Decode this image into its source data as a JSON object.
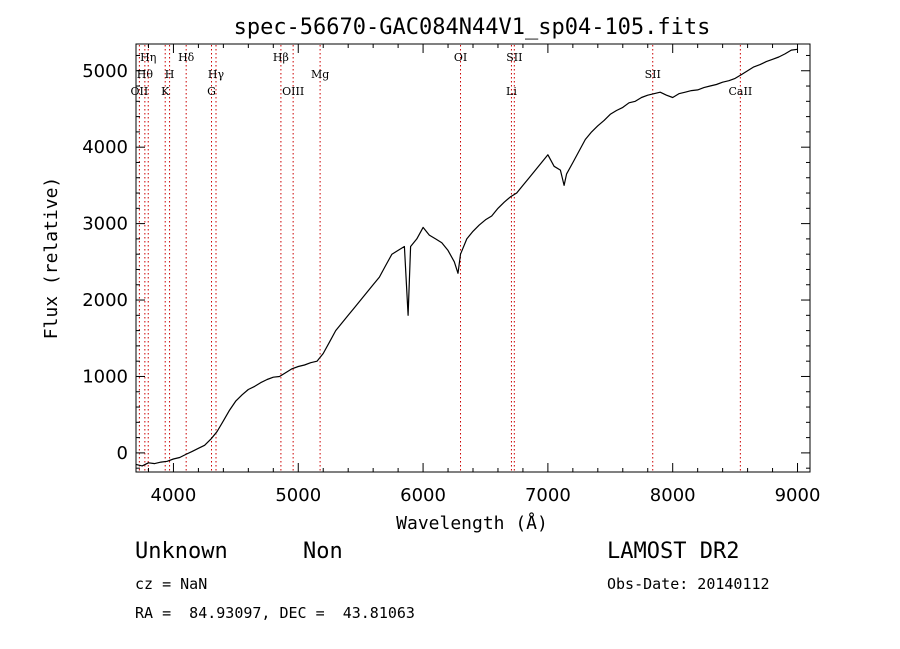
{
  "chart_data": {
    "type": "line",
    "title": "spec-56670-GAC084N44V1_sp04-105.fits",
    "xlabel": "Wavelength (Å)",
    "ylabel": "Flux (relative)",
    "xlim": [
      3700,
      9100
    ],
    "ylim": [
      -250,
      5350
    ],
    "x_ticks": [
      4000,
      5000,
      6000,
      7000,
      8000,
      9000
    ],
    "y_ticks": [
      0,
      1000,
      2000,
      3000,
      4000,
      5000
    ],
    "grid": false,
    "line_color": "#000000",
    "marker_color": "#cc0000",
    "series": [
      {
        "x": [
          3700,
          3750,
          3800,
          3850,
          3900,
          3950,
          4000,
          4050,
          4100,
          4150,
          4200,
          4250,
          4300,
          4350,
          4400,
          4450,
          4500,
          4550,
          4600,
          4650,
          4700,
          4750,
          4800,
          4850,
          4900,
          4950,
          5000,
          5050,
          5100,
          5150,
          5200,
          5250,
          5300,
          5350,
          5400,
          5450,
          5500,
          5550,
          5600,
          5650,
          5700,
          5750,
          5800,
          5850,
          5880,
          5900,
          5950,
          6000,
          6050,
          6100,
          6150,
          6200,
          6250,
          6280,
          6300,
          6350,
          6400,
          6450,
          6500,
          6550,
          6600,
          6650,
          6700,
          6750,
          6800,
          6850,
          6900,
          6950,
          7000,
          7050,
          7100,
          7130,
          7150,
          7200,
          7250,
          7300,
          7350,
          7400,
          7450,
          7500,
          7550,
          7600,
          7650,
          7700,
          7750,
          7800,
          7850,
          7900,
          7950,
          8000,
          8050,
          8100,
          8150,
          8200,
          8250,
          8300,
          8350,
          8400,
          8450,
          8500,
          8550,
          8600,
          8650,
          8700,
          8750,
          8800,
          8850,
          8900,
          8950,
          9000
        ],
        "y": [
          -150,
          -170,
          -130,
          -140,
          -120,
          -110,
          -80,
          -60,
          -20,
          20,
          60,
          100,
          180,
          280,
          420,
          560,
          680,
          760,
          830,
          870,
          920,
          960,
          990,
          1000,
          1050,
          1100,
          1130,
          1150,
          1180,
          1200,
          1300,
          1450,
          1600,
          1700,
          1800,
          1900,
          2000,
          2100,
          2200,
          2300,
          2450,
          2600,
          2650,
          2700,
          1800,
          2700,
          2800,
          2950,
          2850,
          2800,
          2750,
          2650,
          2500,
          2350,
          2600,
          2800,
          2900,
          2980,
          3050,
          3100,
          3200,
          3280,
          3350,
          3400,
          3500,
          3600,
          3700,
          3800,
          3900,
          3750,
          3700,
          3500,
          3650,
          3800,
          3950,
          4100,
          4200,
          4280,
          4350,
          4430,
          4480,
          4520,
          4580,
          4600,
          4650,
          4680,
          4700,
          4720,
          4680,
          4650,
          4700,
          4720,
          4740,
          4750,
          4780,
          4800,
          4820,
          4850,
          4870,
          4900,
          4950,
          5000,
          5050,
          5080,
          5120,
          5150,
          5180,
          5220,
          5270,
          5280
        ]
      }
    ],
    "line_markers": [
      {
        "wavelength": 3727,
        "label": "OII",
        "row": 3
      },
      {
        "wavelength": 3771,
        "label": "Hθ",
        "row": 2
      },
      {
        "wavelength": 3798,
        "label": "Hη",
        "row": 1
      },
      {
        "wavelength": 3934,
        "label": "K",
        "row": 3
      },
      {
        "wavelength": 3969,
        "label": "H",
        "row": 2
      },
      {
        "wavelength": 4102,
        "label": "Hδ",
        "row": 1
      },
      {
        "wavelength": 4305,
        "label": "G",
        "row": 3
      },
      {
        "wavelength": 4341,
        "label": "Hγ",
        "row": 2
      },
      {
        "wavelength": 4861,
        "label": "Hβ",
        "row": 1
      },
      {
        "wavelength": 4959,
        "label": "OIII",
        "row": 3
      },
      {
        "wavelength": 5175,
        "label": "Mg",
        "row": 2
      },
      {
        "wavelength": 6300,
        "label": "OI",
        "row": 1
      },
      {
        "wavelength": 6708,
        "label": "Li",
        "row": 3
      },
      {
        "wavelength": 6731,
        "label": "SII",
        "row": 1
      },
      {
        "wavelength": 7840,
        "label": "SII",
        "row": 2
      },
      {
        "wavelength": 8542,
        "label": "CaII",
        "row": 3
      }
    ]
  },
  "info": {
    "class_label": "Unknown",
    "subclass_label": "Non",
    "survey": "LAMOST DR2",
    "cz": "cz = NaN",
    "obs_date": "Obs-Date: 20140112",
    "coords": "RA =  84.93097, DEC =  43.81063"
  }
}
